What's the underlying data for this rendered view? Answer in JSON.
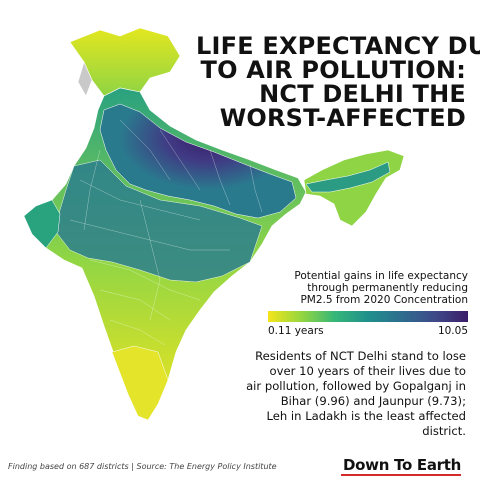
{
  "title": {
    "line1": "LIFE EXPECTANCY DUE",
    "line2": "TO AIR POLLUTION:",
    "line3": "NCT DELHI THE",
    "line4": "WORST-AFFECTED"
  },
  "legend": {
    "line1": "Potential gains in life expectancy",
    "line2": "through permanently reducing",
    "line3": "PM2.5 from 2020 Concentration",
    "min_label": "0.11 years",
    "max_label": "10.05",
    "colors": [
      "#f5e51b",
      "#95d63f",
      "#35b778",
      "#20908c",
      "#2d6d8e",
      "#3e4a89",
      "#3b1d6a"
    ]
  },
  "note": {
    "line1": "Residents of NCT Delhi stand to lose",
    "line2": "over 10 years of their lives due to",
    "line3": "air pollution, followed by Gopalganj in",
    "line4": "Bihar (9.96) and Jaunpur (9.73);",
    "line5": "Leh in Ladakh is the least affected district."
  },
  "footer": "Finding based on 687 districts | Source: The Energy Policy Institute",
  "brand": "Down To Earth"
}
